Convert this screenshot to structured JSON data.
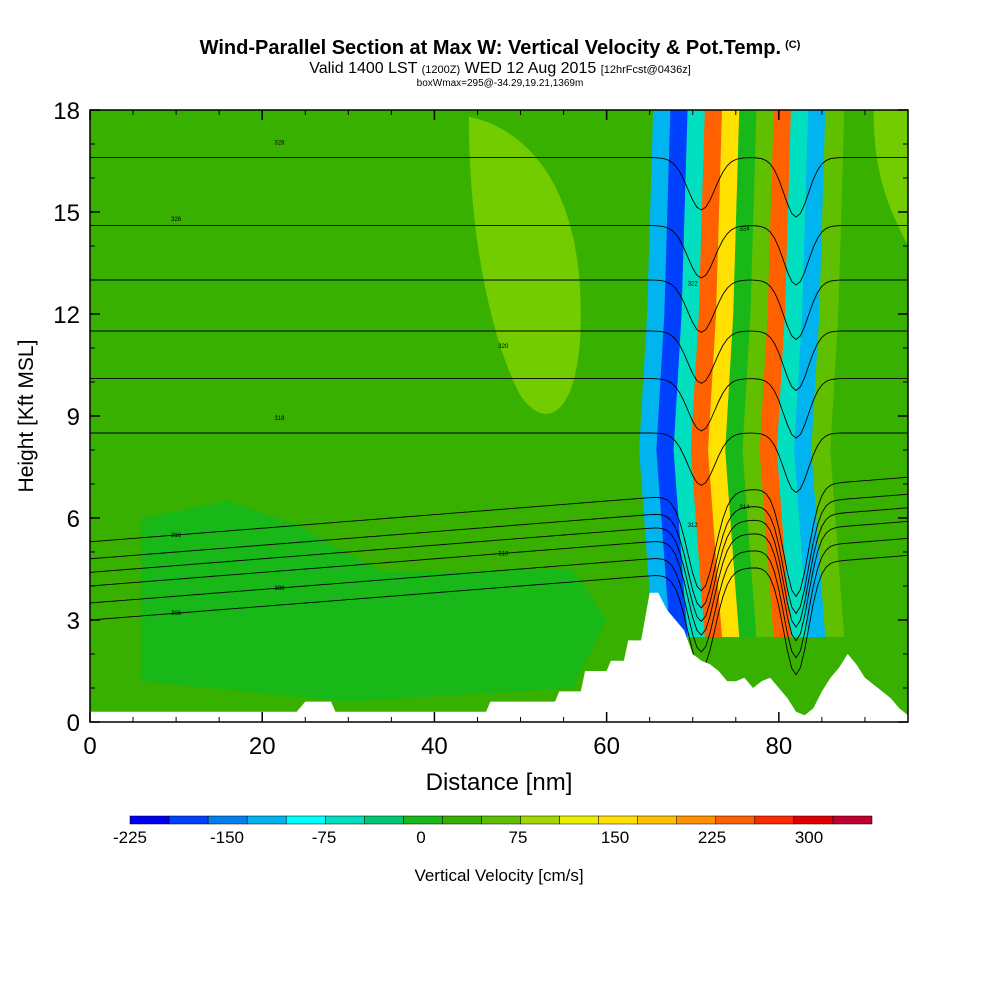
{
  "title": "Wind-Parallel Section at Max W: Vertical Velocity & Pot.Temp.",
  "title_mark": "(C)",
  "subtitle": {
    "valid": "Valid 1400 LST",
    "utc": "(1200Z)",
    "date": "WED 12 Aug 2015",
    "forecast": "[12hrFcst@0436z]"
  },
  "box_info": "boxWmax=295@-34.29,19.21,1369m",
  "colorbar_label": "Vertical Velocity [cm/s]",
  "chart_data": {
    "type": "heatmap",
    "xlabel": "Distance [nm]",
    "ylabel": "Height [Kft MSL]",
    "xlim": [
      0,
      95
    ],
    "ylim": [
      0,
      18
    ],
    "x_ticks": [
      "0",
      "20",
      "40",
      "60",
      "80"
    ],
    "y_ticks": [
      "0",
      "3",
      "6",
      "9",
      "12",
      "15",
      "18"
    ],
    "colorbar": {
      "ticks": [
        "-225",
        "-150",
        "-75",
        "0",
        "75",
        "150",
        "225",
        "300"
      ],
      "colors": [
        "#0000f0",
        "#0040ff",
        "#0080f0",
        "#00b4f0",
        "#00ffff",
        "#00e0c0",
        "#00c870",
        "#18b818",
        "#38b000",
        "#60c000",
        "#a0d800",
        "#e8f000",
        "#ffe000",
        "#ffc000",
        "#ff9000",
        "#ff6000",
        "#ff2800",
        "#e00000",
        "#c00030"
      ]
    },
    "velocity_bands": [
      {
        "x": 66.5,
        "value": -150
      },
      {
        "x": 68.5,
        "value": -200
      },
      {
        "x": 70.5,
        "value": -75
      },
      {
        "x": 72.5,
        "value": 250
      },
      {
        "x": 74.5,
        "value": 150
      },
      {
        "x": 76.5,
        "value": 0
      },
      {
        "x": 78.5,
        "value": 75
      },
      {
        "x": 80.5,
        "value": 250
      },
      {
        "x": 82.5,
        "value": -75
      },
      {
        "x": 84.5,
        "value": -150
      },
      {
        "x": 86.5,
        "value": 75
      }
    ],
    "terrain": [
      [
        0,
        0.3
      ],
      [
        24,
        0.3
      ],
      [
        25,
        0.6
      ],
      [
        28,
        0.6
      ],
      [
        28.5,
        0.3
      ],
      [
        46,
        0.3
      ],
      [
        46.5,
        0.6
      ],
      [
        54,
        0.6
      ],
      [
        54.5,
        0.9
      ],
      [
        57,
        0.9
      ],
      [
        57.5,
        1.5
      ],
      [
        60,
        1.5
      ],
      [
        60.5,
        1.8
      ],
      [
        62,
        1.8
      ],
      [
        62.5,
        2.4
      ],
      [
        64,
        2.4
      ],
      [
        64.5,
        3.1
      ],
      [
        65,
        3.8
      ],
      [
        66,
        3.8
      ],
      [
        67,
        3.3
      ],
      [
        68,
        3.0
      ],
      [
        69,
        2.7
      ],
      [
        70,
        2.0
      ],
      [
        71,
        1.8
      ],
      [
        72,
        1.7
      ],
      [
        73,
        1.5
      ],
      [
        74,
        1.2
      ],
      [
        75,
        1.2
      ],
      [
        76,
        1.3
      ],
      [
        77,
        1.0
      ],
      [
        78,
        1.2
      ],
      [
        79,
        1.3
      ],
      [
        80,
        1.0
      ],
      [
        81,
        0.7
      ],
      [
        82,
        0.3
      ],
      [
        83,
        0.2
      ],
      [
        84,
        0.4
      ],
      [
        85,
        0.9
      ],
      [
        86,
        1.3
      ],
      [
        87,
        1.6
      ],
      [
        88,
        2.0
      ],
      [
        89,
        1.7
      ],
      [
        90,
        1.3
      ],
      [
        91,
        1.1
      ],
      [
        92,
        0.9
      ],
      [
        93,
        0.7
      ],
      [
        94,
        0.4
      ],
      [
        95,
        0.2
      ]
    ],
    "theta_contours": [
      {
        "z": 3.0,
        "label": "306"
      },
      {
        "z": 3.5,
        "label": "308"
      },
      {
        "z": 4.0,
        "label": "310"
      },
      {
        "z": 4.4,
        "label": "312"
      },
      {
        "z": 4.8,
        "label": "314"
      },
      {
        "z": 5.3,
        "label": "316"
      },
      {
        "z": 8.5,
        "label": "318"
      },
      {
        "z": 10.1,
        "label": "320"
      },
      {
        "z": 11.5,
        "label": "322"
      },
      {
        "z": 13.0,
        "label": "324"
      },
      {
        "z": 14.6,
        "label": "326"
      },
      {
        "z": 16.6,
        "label": "328"
      }
    ]
  }
}
